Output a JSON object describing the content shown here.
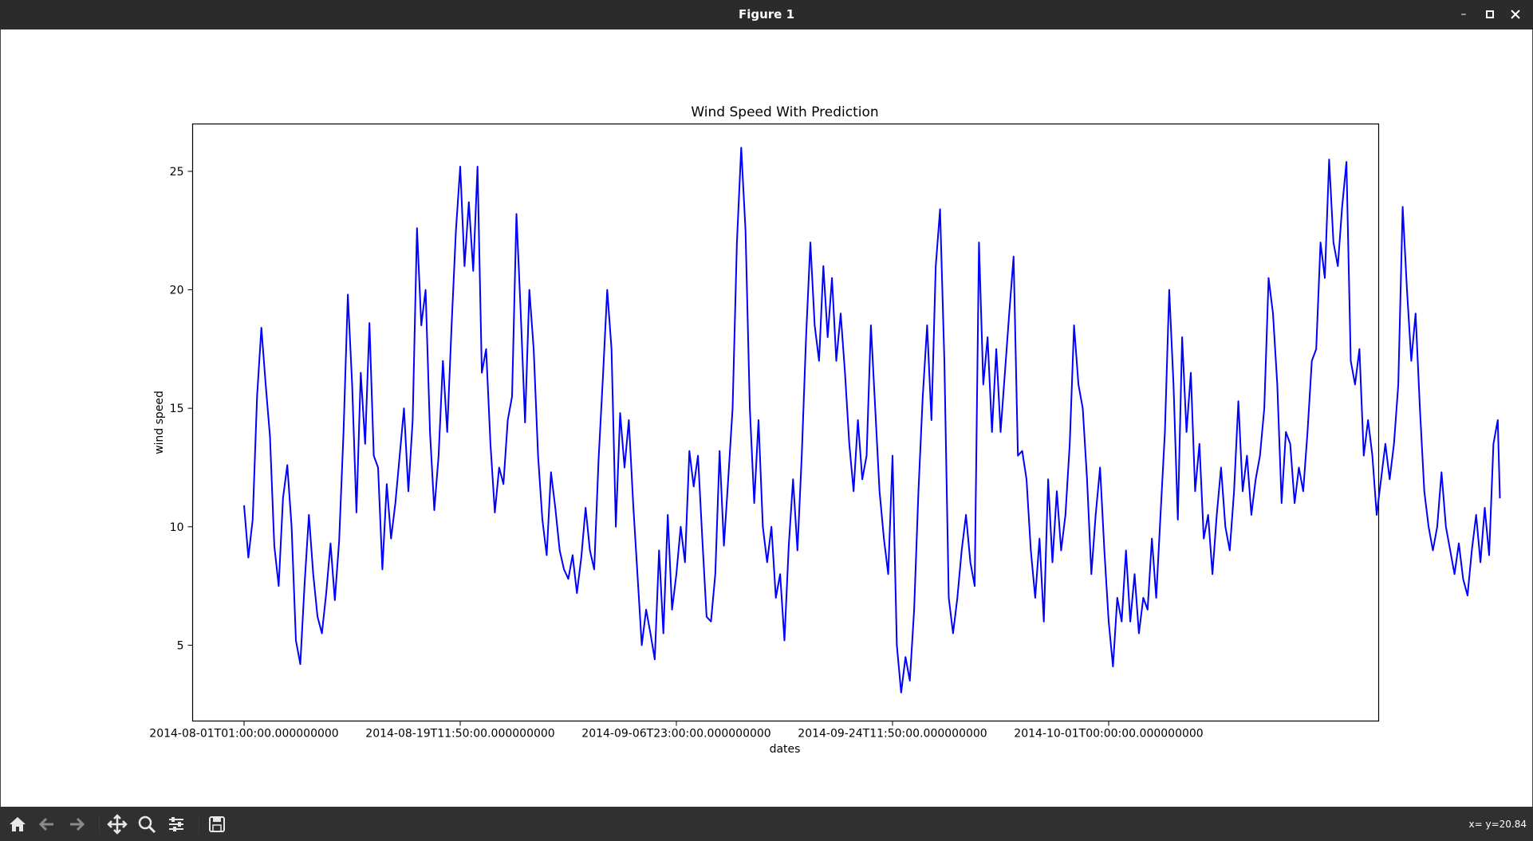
{
  "window": {
    "title": "Figure 1"
  },
  "status": {
    "coords": "x= y=20.84"
  },
  "chart_data": {
    "type": "line",
    "title": "Wind Speed With Prediction",
    "xlabel": "dates",
    "ylabel": "wind speed",
    "x_tick_labels": [
      "2014-08-01T01:00:00.000000000",
      "2014-08-19T11:50:00.000000000",
      "2014-09-06T23:00:00.000000000",
      "2014-09-24T11:50:00.000000000",
      "2014-10-01T00:00:00.000000000"
    ],
    "y_ticks": [
      5,
      10,
      15,
      20,
      25
    ],
    "ylim": [
      1.8,
      27.0
    ],
    "index_range": [
      0,
      500
    ],
    "x_tick_indices": [
      0,
      100,
      200,
      300,
      400
    ],
    "grid": false,
    "line_color": "#0000ff",
    "series": [
      {
        "points": [
          [
            0,
            10.9
          ],
          [
            2,
            8.7
          ],
          [
            4,
            10.3
          ],
          [
            6,
            15.5
          ],
          [
            8,
            18.4
          ],
          [
            10,
            16.0
          ],
          [
            12,
            13.8
          ],
          [
            14,
            9.2
          ],
          [
            16,
            7.5
          ],
          [
            18,
            11.2
          ],
          [
            20,
            12.6
          ],
          [
            22,
            10.0
          ],
          [
            24,
            5.2
          ],
          [
            26,
            4.2
          ],
          [
            28,
            7.6
          ],
          [
            30,
            10.5
          ],
          [
            32,
            8.0
          ],
          [
            34,
            6.2
          ],
          [
            36,
            5.5
          ],
          [
            38,
            7.2
          ],
          [
            40,
            9.3
          ],
          [
            42,
            6.9
          ],
          [
            44,
            9.4
          ],
          [
            46,
            14.0
          ],
          [
            48,
            19.8
          ],
          [
            50,
            16.0
          ],
          [
            52,
            10.6
          ],
          [
            54,
            16.5
          ],
          [
            56,
            13.5
          ],
          [
            58,
            18.6
          ],
          [
            60,
            13.0
          ],
          [
            62,
            12.5
          ],
          [
            64,
            8.2
          ],
          [
            66,
            11.8
          ],
          [
            68,
            9.5
          ],
          [
            70,
            11.0
          ],
          [
            72,
            13.0
          ],
          [
            74,
            15.0
          ],
          [
            76,
            11.5
          ],
          [
            78,
            14.5
          ],
          [
            80,
            22.6
          ],
          [
            82,
            18.5
          ],
          [
            84,
            20.0
          ],
          [
            86,
            14.0
          ],
          [
            88,
            10.7
          ],
          [
            90,
            13.0
          ],
          [
            92,
            17.0
          ],
          [
            94,
            14.0
          ],
          [
            96,
            18.5
          ],
          [
            98,
            22.5
          ],
          [
            100,
            25.2
          ],
          [
            102,
            21.0
          ],
          [
            104,
            23.7
          ],
          [
            106,
            20.8
          ],
          [
            108,
            25.2
          ],
          [
            110,
            16.5
          ],
          [
            112,
            17.5
          ],
          [
            114,
            13.5
          ],
          [
            116,
            10.6
          ],
          [
            118,
            12.5
          ],
          [
            120,
            11.8
          ],
          [
            122,
            14.5
          ],
          [
            124,
            15.5
          ],
          [
            126,
            23.2
          ],
          [
            128,
            19.0
          ],
          [
            130,
            14.4
          ],
          [
            132,
            20.0
          ],
          [
            134,
            17.5
          ],
          [
            136,
            13.0
          ],
          [
            138,
            10.3
          ],
          [
            140,
            8.8
          ],
          [
            142,
            12.3
          ],
          [
            144,
            10.8
          ],
          [
            146,
            9.0
          ],
          [
            148,
            8.2
          ],
          [
            150,
            7.8
          ],
          [
            152,
            8.8
          ],
          [
            154,
            7.2
          ],
          [
            156,
            8.7
          ],
          [
            158,
            10.8
          ],
          [
            160,
            9.0
          ],
          [
            162,
            8.2
          ],
          [
            164,
            12.8
          ],
          [
            166,
            16.3
          ],
          [
            168,
            20.0
          ],
          [
            170,
            17.5
          ],
          [
            172,
            10.0
          ],
          [
            174,
            14.8
          ],
          [
            176,
            12.5
          ],
          [
            178,
            14.5
          ],
          [
            180,
            11.0
          ],
          [
            182,
            8.0
          ],
          [
            184,
            5.0
          ],
          [
            186,
            6.5
          ],
          [
            188,
            5.5
          ],
          [
            190,
            4.4
          ],
          [
            192,
            9.0
          ],
          [
            194,
            5.5
          ],
          [
            196,
            10.5
          ],
          [
            198,
            6.5
          ],
          [
            200,
            8.0
          ],
          [
            202,
            10.0
          ],
          [
            204,
            8.5
          ],
          [
            206,
            13.2
          ],
          [
            208,
            11.7
          ],
          [
            210,
            13.0
          ],
          [
            212,
            9.5
          ],
          [
            214,
            6.2
          ],
          [
            216,
            6.0
          ],
          [
            218,
            8.0
          ],
          [
            220,
            13.2
          ],
          [
            222,
            9.2
          ],
          [
            224,
            12.0
          ],
          [
            226,
            15.0
          ],
          [
            228,
            22.0
          ],
          [
            230,
            26.0
          ],
          [
            232,
            22.5
          ],
          [
            234,
            15.0
          ],
          [
            236,
            11.0
          ],
          [
            238,
            14.5
          ],
          [
            240,
            10.0
          ],
          [
            242,
            8.5
          ],
          [
            244,
            10.0
          ],
          [
            246,
            7.0
          ],
          [
            248,
            8.0
          ],
          [
            250,
            5.2
          ],
          [
            252,
            9.2
          ],
          [
            254,
            12.0
          ],
          [
            256,
            9.0
          ],
          [
            258,
            13.0
          ],
          [
            260,
            18.0
          ],
          [
            262,
            22.0
          ],
          [
            264,
            18.5
          ],
          [
            266,
            17.0
          ],
          [
            268,
            21.0
          ],
          [
            270,
            18.0
          ],
          [
            272,
            20.5
          ],
          [
            274,
            17.0
          ],
          [
            276,
            19.0
          ],
          [
            278,
            16.5
          ],
          [
            280,
            13.5
          ],
          [
            282,
            11.5
          ],
          [
            284,
            14.5
          ],
          [
            286,
            12.0
          ],
          [
            288,
            13.0
          ],
          [
            290,
            18.5
          ],
          [
            292,
            15.0
          ],
          [
            294,
            11.5
          ],
          [
            296,
            9.5
          ],
          [
            298,
            8.0
          ],
          [
            300,
            13.0
          ],
          [
            302,
            5.0
          ],
          [
            304,
            3.0
          ],
          [
            306,
            4.5
          ],
          [
            308,
            3.5
          ],
          [
            310,
            6.5
          ],
          [
            312,
            11.5
          ],
          [
            314,
            15.5
          ],
          [
            316,
            18.5
          ],
          [
            318,
            14.5
          ],
          [
            320,
            21.0
          ],
          [
            322,
            23.4
          ],
          [
            324,
            17.0
          ],
          [
            326,
            7.0
          ],
          [
            328,
            5.5
          ],
          [
            330,
            7.0
          ],
          [
            332,
            9.0
          ],
          [
            334,
            10.5
          ],
          [
            336,
            8.5
          ],
          [
            338,
            7.5
          ],
          [
            340,
            22.0
          ],
          [
            342,
            16.0
          ],
          [
            344,
            18.0
          ],
          [
            346,
            14.0
          ],
          [
            348,
            17.5
          ],
          [
            350,
            14.0
          ],
          [
            352,
            16.5
          ],
          [
            354,
            19.0
          ],
          [
            356,
            21.4
          ],
          [
            358,
            13.0
          ],
          [
            360,
            13.2
          ],
          [
            362,
            12.0
          ],
          [
            364,
            9.0
          ],
          [
            366,
            7.0
          ],
          [
            368,
            9.5
          ],
          [
            370,
            6.0
          ],
          [
            372,
            12.0
          ],
          [
            374,
            8.5
          ],
          [
            376,
            11.5
          ],
          [
            378,
            9.0
          ],
          [
            380,
            10.5
          ],
          [
            382,
            13.5
          ],
          [
            384,
            18.5
          ],
          [
            386,
            16.0
          ],
          [
            388,
            15.0
          ],
          [
            390,
            12.0
          ],
          [
            392,
            8.0
          ],
          [
            394,
            10.5
          ],
          [
            396,
            12.5
          ],
          [
            398,
            9.0
          ],
          [
            400,
            6.0
          ],
          [
            402,
            4.1
          ],
          [
            404,
            7.0
          ],
          [
            406,
            6.0
          ],
          [
            408,
            9.0
          ],
          [
            410,
            6.0
          ],
          [
            412,
            8.0
          ],
          [
            414,
            5.5
          ],
          [
            416,
            7.0
          ],
          [
            418,
            6.5
          ],
          [
            420,
            9.5
          ],
          [
            422,
            7.0
          ],
          [
            424,
            10.5
          ],
          [
            426,
            14.0
          ],
          [
            428,
            20.0
          ],
          [
            430,
            16.0
          ],
          [
            432,
            10.3
          ],
          [
            434,
            18.0
          ],
          [
            436,
            14.0
          ],
          [
            438,
            16.5
          ],
          [
            440,
            11.5
          ],
          [
            442,
            13.5
          ],
          [
            444,
            9.5
          ],
          [
            446,
            10.5
          ],
          [
            448,
            8.0
          ],
          [
            450,
            10.5
          ],
          [
            452,
            12.5
          ],
          [
            454,
            10.0
          ],
          [
            456,
            9.0
          ],
          [
            458,
            11.5
          ],
          [
            460,
            15.3
          ],
          [
            462,
            11.5
          ],
          [
            464,
            13.0
          ],
          [
            466,
            10.5
          ],
          [
            468,
            12.0
          ],
          [
            470,
            13.0
          ],
          [
            472,
            15.0
          ],
          [
            474,
            20.5
          ],
          [
            476,
            19.0
          ],
          [
            478,
            16.0
          ],
          [
            480,
            11.0
          ],
          [
            482,
            14.0
          ],
          [
            484,
            13.5
          ],
          [
            486,
            11.0
          ],
          [
            488,
            12.5
          ],
          [
            490,
            11.5
          ],
          [
            492,
            14.0
          ],
          [
            494,
            17.0
          ],
          [
            496,
            17.5
          ],
          [
            498,
            22.0
          ]
        ]
      }
    ]
  },
  "chart_data_tail": [
    [
      500,
      20.5
    ],
    [
      502,
      25.5
    ],
    [
      504,
      22.0
    ],
    [
      506,
      21.0
    ],
    [
      508,
      23.5
    ],
    [
      510,
      25.4
    ],
    [
      512,
      17.0
    ],
    [
      514,
      16.0
    ],
    [
      516,
      17.5
    ],
    [
      518,
      13.0
    ],
    [
      520,
      14.5
    ],
    [
      522,
      13.0
    ],
    [
      524,
      10.5
    ],
    [
      526,
      12.0
    ],
    [
      528,
      13.5
    ],
    [
      530,
      12.0
    ],
    [
      532,
      13.5
    ],
    [
      534,
      16.0
    ],
    [
      536,
      23.5
    ],
    [
      538,
      20.0
    ],
    [
      540,
      17.0
    ],
    [
      542,
      19.0
    ],
    [
      544,
      15.0
    ],
    [
      546,
      11.5
    ],
    [
      548,
      10.0
    ],
    [
      550,
      9.0
    ],
    [
      552,
      10.0
    ],
    [
      554,
      12.3
    ],
    [
      556,
      10.0
    ],
    [
      558,
      9.0
    ],
    [
      560,
      8.0
    ],
    [
      562,
      9.3
    ],
    [
      564,
      7.8
    ],
    [
      566,
      7.1
    ],
    [
      568,
      9.0
    ],
    [
      570,
      10.5
    ],
    [
      572,
      8.5
    ],
    [
      574,
      10.8
    ],
    [
      576,
      8.8
    ],
    [
      578,
      13.5
    ],
    [
      580,
      14.5
    ],
    [
      581,
      11.2
    ]
  ]
}
